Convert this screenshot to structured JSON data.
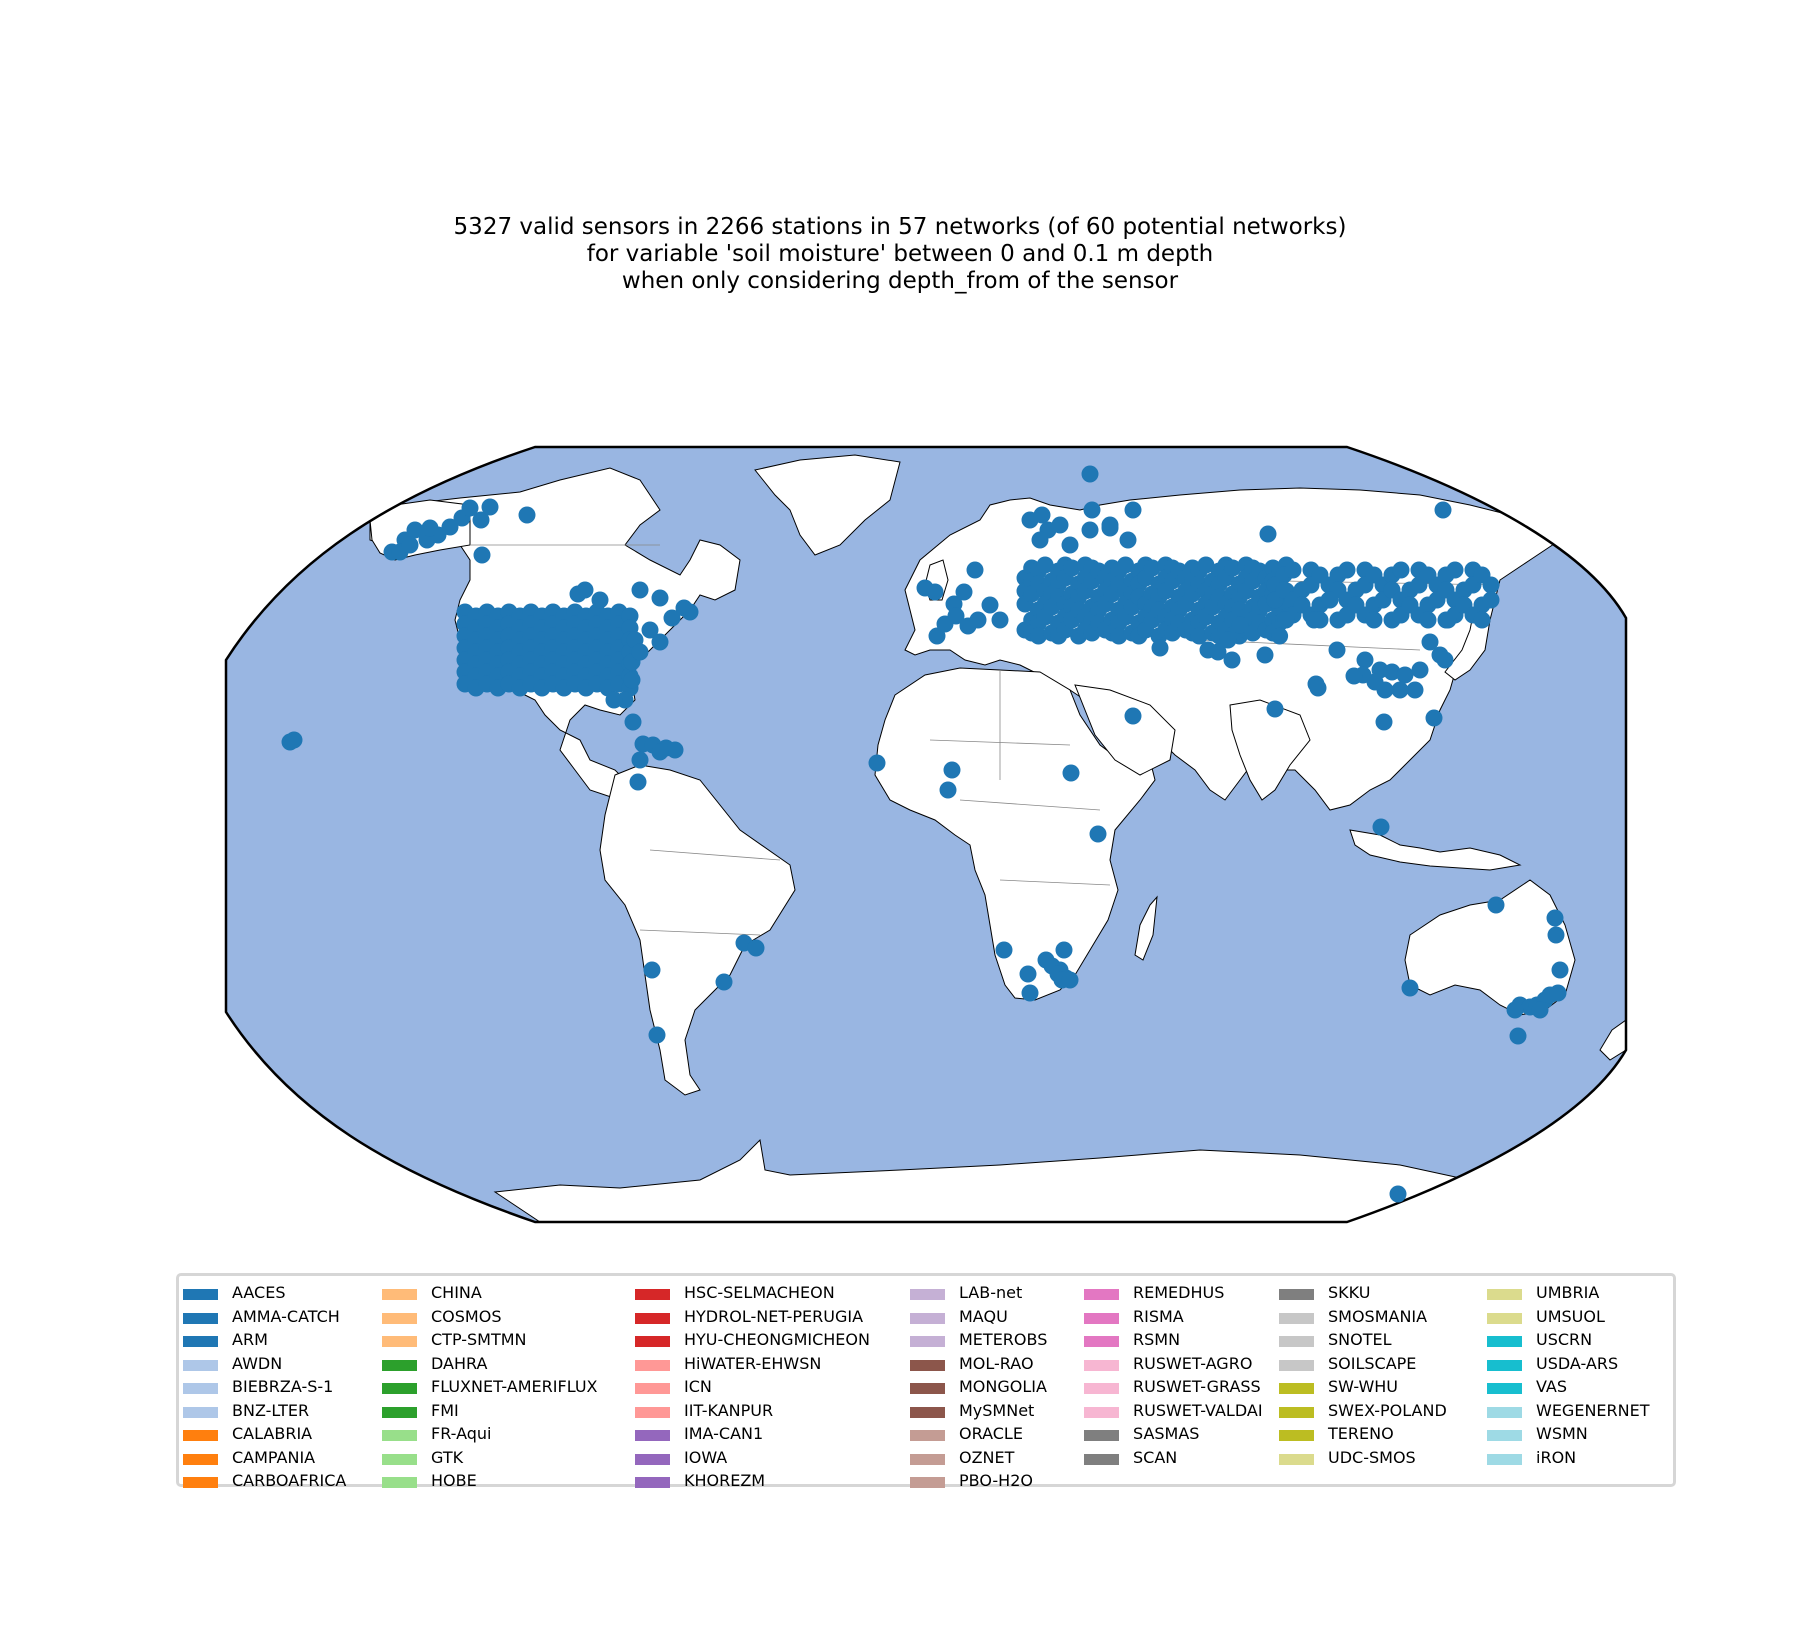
{
  "title": {
    "line1": "5327 valid sensors in 2266 stations in 57 networks (of 60 potential networks)",
    "line2": "for variable 'soil moisture' between 0 and 0.1 m depth",
    "line3": "when only considering depth_from of the sensor"
  },
  "colors": {
    "ocean": "#99b6e2",
    "land": "#ffffff",
    "coast": "#000000",
    "marker": "#1f77b4"
  },
  "map": {
    "projection": "Robinson",
    "features": [
      "ocean",
      "land",
      "coastlines",
      "country-borders"
    ]
  },
  "legend": {
    "columns": [
      [
        {
          "label": "AACES",
          "color": "#1f77b4"
        },
        {
          "label": "AMMA-CATCH",
          "color": "#1f77b4"
        },
        {
          "label": "ARM",
          "color": "#1f77b4"
        },
        {
          "label": "AWDN",
          "color": "#aec7e8"
        },
        {
          "label": "BIEBRZA-S-1",
          "color": "#aec7e8"
        },
        {
          "label": "BNZ-LTER",
          "color": "#aec7e8"
        },
        {
          "label": "CALABRIA",
          "color": "#ff7f0e"
        },
        {
          "label": "CAMPANIA",
          "color": "#ff7f0e"
        },
        {
          "label": "CARBOAFRICA",
          "color": "#ff7f0e"
        }
      ],
      [
        {
          "label": "CHINA",
          "color": "#ffbb78"
        },
        {
          "label": "COSMOS",
          "color": "#ffbb78"
        },
        {
          "label": "CTP-SMTMN",
          "color": "#ffbb78"
        },
        {
          "label": "DAHRA",
          "color": "#2ca02c"
        },
        {
          "label": "FLUXNET-AMERIFLUX",
          "color": "#2ca02c"
        },
        {
          "label": "FMI",
          "color": "#2ca02c"
        },
        {
          "label": "FR-Aqui",
          "color": "#98df8a"
        },
        {
          "label": "GTK",
          "color": "#98df8a"
        },
        {
          "label": "HOBE",
          "color": "#98df8a"
        }
      ],
      [
        {
          "label": "HSC-SELMACHEON",
          "color": "#d62728"
        },
        {
          "label": "HYDROL-NET-PERUGIA",
          "color": "#d62728"
        },
        {
          "label": "HYU-CHEONGMICHEON",
          "color": "#d62728"
        },
        {
          "label": "HiWATER-EHWSN",
          "color": "#ff9896"
        },
        {
          "label": "ICN",
          "color": "#ff9896"
        },
        {
          "label": "IIT-KANPUR",
          "color": "#ff9896"
        },
        {
          "label": "IMA-CAN1",
          "color": "#9467bd"
        },
        {
          "label": "IOWA",
          "color": "#9467bd"
        },
        {
          "label": "KHOREZM",
          "color": "#9467bd"
        }
      ],
      [
        {
          "label": "LAB-net",
          "color": "#c5b0d5"
        },
        {
          "label": "MAQU",
          "color": "#c5b0d5"
        },
        {
          "label": "METEROBS",
          "color": "#c5b0d5"
        },
        {
          "label": "MOL-RAO",
          "color": "#8c564b"
        },
        {
          "label": "MONGOLIA",
          "color": "#8c564b"
        },
        {
          "label": "MySMNet",
          "color": "#8c564b"
        },
        {
          "label": "ORACLE",
          "color": "#c49c94"
        },
        {
          "label": "OZNET",
          "color": "#c49c94"
        },
        {
          "label": "PBO-H2O",
          "color": "#c49c94"
        }
      ],
      [
        {
          "label": "REMEDHUS",
          "color": "#e377c2"
        },
        {
          "label": "RISMA",
          "color": "#e377c2"
        },
        {
          "label": "RSMN",
          "color": "#e377c2"
        },
        {
          "label": "RUSWET-AGRO",
          "color": "#f7b6d2"
        },
        {
          "label": "RUSWET-GRASS",
          "color": "#f7b6d2"
        },
        {
          "label": "RUSWET-VALDAI",
          "color": "#f7b6d2"
        },
        {
          "label": "SASMAS",
          "color": "#7f7f7f"
        },
        {
          "label": "SCAN",
          "color": "#7f7f7f"
        }
      ],
      [
        {
          "label": "SKKU",
          "color": "#7f7f7f"
        },
        {
          "label": "SMOSMANIA",
          "color": "#c7c7c7"
        },
        {
          "label": "SNOTEL",
          "color": "#c7c7c7"
        },
        {
          "label": "SOILSCAPE",
          "color": "#c7c7c7"
        },
        {
          "label": "SW-WHU",
          "color": "#bcbd22"
        },
        {
          "label": "SWEX-POLAND",
          "color": "#bcbd22"
        },
        {
          "label": "TERENO",
          "color": "#bcbd22"
        },
        {
          "label": "UDC-SMOS",
          "color": "#dbdb8d"
        }
      ],
      [
        {
          "label": "UMBRIA",
          "color": "#dbdb8d"
        },
        {
          "label": "UMSUOL",
          "color": "#dbdb8d"
        },
        {
          "label": "USCRN",
          "color": "#17becf"
        },
        {
          "label": "USDA-ARS",
          "color": "#17becf"
        },
        {
          "label": "VAS",
          "color": "#17becf"
        },
        {
          "label": "WEGENERNET",
          "color": "#9edae5"
        },
        {
          "label": "WSMN",
          "color": "#9edae5"
        },
        {
          "label": "iRON",
          "color": "#9edae5"
        }
      ]
    ]
  }
}
